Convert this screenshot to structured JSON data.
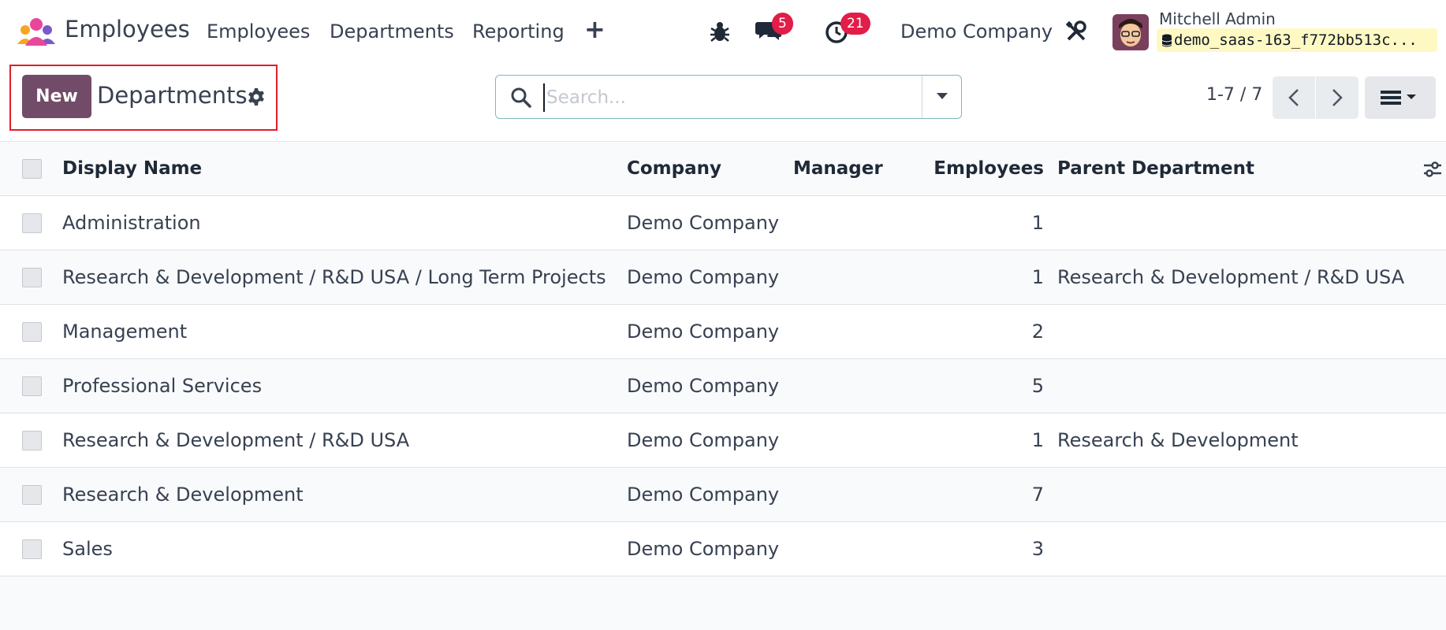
{
  "navbar": {
    "app_name": "Employees",
    "menu": [
      "Employees",
      "Departments",
      "Reporting"
    ],
    "add_symbol": "+",
    "messages_count": "5",
    "activities_count": "21",
    "company": "Demo Company",
    "user_name": "Mitchell Admin",
    "database": "demo_saas-163_f772bb513c..."
  },
  "control_panel": {
    "new_label": "New",
    "title": "Departments",
    "search_placeholder": "Search...",
    "pager": "1-7 / 7"
  },
  "table": {
    "headers": {
      "name": "Display Name",
      "company": "Company",
      "manager": "Manager",
      "employees": "Employees",
      "parent": "Parent Department"
    },
    "rows": [
      {
        "name": "Administration",
        "company": "Demo Company",
        "manager": "",
        "employees": "1",
        "parent": ""
      },
      {
        "name": "Research & Development / R&D USA / Long Term Projects",
        "company": "Demo Company",
        "manager": "",
        "employees": "1",
        "parent": "Research & Development / R&D USA"
      },
      {
        "name": "Management",
        "company": "Demo Company",
        "manager": "",
        "employees": "2",
        "parent": ""
      },
      {
        "name": "Professional Services",
        "company": "Demo Company",
        "manager": "",
        "employees": "5",
        "parent": ""
      },
      {
        "name": "Research & Development / R&D USA",
        "company": "Demo Company",
        "manager": "",
        "employees": "1",
        "parent": "Research & Development"
      },
      {
        "name": "Research & Development",
        "company": "Demo Company",
        "manager": "",
        "employees": "7",
        "parent": ""
      },
      {
        "name": "Sales",
        "company": "Demo Company",
        "manager": "",
        "employees": "3",
        "parent": ""
      }
    ]
  },
  "colors": {
    "brand": "#714b67",
    "badge": "#e11d48",
    "highlight": "#e11d2a"
  },
  "icons": [
    "app-logo-icon",
    "plus-icon",
    "bug-icon",
    "chat-icon",
    "clock-icon",
    "tools-icon",
    "database-icon",
    "gear-icon",
    "search-icon",
    "caret-down-icon",
    "chevron-left-icon",
    "chevron-right-icon",
    "list-view-icon",
    "column-settings-icon"
  ]
}
